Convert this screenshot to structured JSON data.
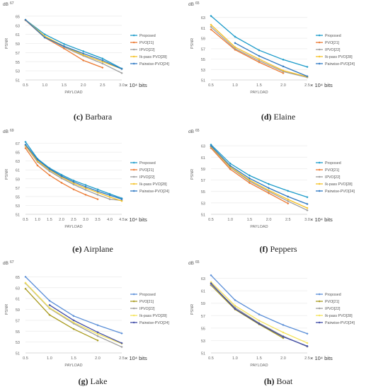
{
  "figure": {
    "colors": {
      "Proposed": "#1a9ac9",
      "PVO[21]": "#ec7a33",
      "IPVO[22]": "#9d9d9d",
      "Ik-pass PVO[28]": "#f5c126",
      "Pairwise-PVO[24]": "#2e78c2",
      "PVO[21]_alt": "#a89a1e",
      "Pairwise-PVO[24]_alt": "#3f4ba6"
    }
  },
  "chart_data": [
    {
      "id": "c",
      "type": "line",
      "caption_letter": "(c)",
      "caption_name": "Barbara",
      "ylabel": "PSNR",
      "xlabel": "PAYLOAD",
      "unit_top": "dB",
      "unit_top_val": "67",
      "x_suffix": "× 10⁴ bits",
      "xticks": [
        "0.5",
        "1.0",
        "1.5",
        "2.0",
        "2.5",
        "3.0"
      ],
      "yticks": [
        "51",
        "53",
        "55",
        "57",
        "59",
        "61",
        "63",
        "65"
      ],
      "xlim": [
        0.5,
        3.0
      ],
      "ylim": [
        51,
        67
      ],
      "series": [
        {
          "name": "Proposed",
          "color": "#1a9ac9",
          "x": [
            0.5,
            1.0,
            1.5,
            2.0,
            2.5,
            3.0
          ],
          "y": [
            64.2,
            61.0,
            58.9,
            57.3,
            55.7,
            53.5
          ]
        },
        {
          "name": "PVO[21]",
          "color": "#ec7a33",
          "x": [
            0.5,
            1.0,
            1.5,
            2.0,
            2.5
          ],
          "y": [
            64.1,
            60.3,
            57.9,
            55.3,
            53.7
          ]
        },
        {
          "name": "IPVO[22]",
          "color": "#9d9d9d",
          "x": [
            0.5,
            1.0,
            1.5,
            2.0,
            2.5,
            3.0
          ],
          "y": [
            64.2,
            60.5,
            58.2,
            56.3,
            54.6,
            52.5
          ]
        },
        {
          "name": "Ik-pass PVO[28]",
          "color": "#f5c126",
          "x": [
            0.5,
            1.0,
            1.5,
            2.0,
            2.5,
            3.0
          ],
          "y": [
            64.2,
            60.6,
            58.4,
            56.5,
            55.0,
            53.4
          ]
        },
        {
          "name": "Pairwise-PVO[24]",
          "color": "#2e78c2",
          "x": [
            0.5,
            1.0,
            1.5,
            2.0,
            2.5,
            3.0
          ],
          "y": [
            64.2,
            60.3,
            58.4,
            56.8,
            55.3,
            53.4
          ]
        }
      ]
    },
    {
      "id": "d",
      "type": "line",
      "caption_letter": "(d)",
      "caption_name": "Elaine",
      "ylabel": "PSNR",
      "xlabel": "PAYLOAD",
      "unit_top": "dB",
      "unit_top_val": "65",
      "x_suffix": "× 10⁴ bits",
      "xticks": [
        "0.5",
        "1.0",
        "1.5",
        "2.0",
        "2.5"
      ],
      "yticks": [
        "51",
        "53",
        "55",
        "57",
        "59",
        "61",
        "63"
      ],
      "xlim": [
        0.5,
        2.5
      ],
      "ylim": [
        51,
        65
      ],
      "series": [
        {
          "name": "Proposed",
          "color": "#1a9ac9",
          "x": [
            0.5,
            1.0,
            1.5,
            2.0,
            2.5
          ],
          "y": [
            63.3,
            59.3,
            56.7,
            54.9,
            53.5
          ]
        },
        {
          "name": "PVO[21]",
          "color": "#ec7a33",
          "x": [
            0.5,
            1.0,
            1.5,
            2.0
          ],
          "y": [
            60.7,
            56.8,
            54.4,
            52.3
          ]
        },
        {
          "name": "IPVO[22]",
          "color": "#9d9d9d",
          "x": [
            0.5,
            1.0,
            1.5,
            2.0,
            2.5
          ],
          "y": [
            61.2,
            57.0,
            54.7,
            52.6,
            51.5
          ]
        },
        {
          "name": "Ik-pass PVO[28]",
          "color": "#f5c126",
          "x": [
            0.5,
            1.0,
            1.5,
            2.0,
            2.5
          ],
          "y": [
            61.6,
            57.3,
            55.0,
            52.8,
            51.6
          ]
        },
        {
          "name": "Pairwise-PVO[24]",
          "color": "#2e78c2",
          "x": [
            1.0,
            1.5,
            2.0,
            2.5
          ],
          "y": [
            58.1,
            55.6,
            53.6,
            51.7
          ]
        }
      ]
    },
    {
      "id": "e",
      "type": "line",
      "caption_letter": "(e)",
      "caption_name": "Airplane",
      "ylabel": "PSNR",
      "xlabel": "PAYLOAD",
      "unit_top": "dB",
      "unit_top_val": "69",
      "x_suffix": "× 10⁴ bits",
      "xticks": [
        "0.5",
        "1.0",
        "1.5",
        "2.0",
        "2.5",
        "3.0",
        "3.5",
        "4.0",
        "4.5"
      ],
      "yticks": [
        "51",
        "53",
        "55",
        "57",
        "59",
        "61",
        "63",
        "65",
        "67"
      ],
      "xlim": [
        0.5,
        4.5
      ],
      "ylim": [
        51,
        69
      ],
      "series": [
        {
          "name": "Proposed",
          "color": "#1a9ac9",
          "x": [
            0.5,
            1.0,
            1.5,
            2.0,
            2.5,
            3.0,
            3.5,
            4.0,
            4.5
          ],
          "y": [
            67.3,
            63.5,
            61.4,
            59.9,
            58.6,
            57.6,
            56.6,
            55.6,
            54.6
          ]
        },
        {
          "name": "PVO[21]",
          "color": "#ec7a33",
          "x": [
            0.5,
            1.0,
            1.5,
            2.0,
            2.5,
            3.0,
            3.5
          ],
          "y": [
            65.9,
            62.0,
            59.8,
            58.1,
            56.6,
            55.4,
            54.4
          ]
        },
        {
          "name": "IPVO[22]",
          "color": "#9d9d9d",
          "x": [
            0.5,
            1.0,
            1.5,
            2.0,
            2.5,
            3.0,
            3.5,
            4.0,
            4.5
          ],
          "y": [
            66.4,
            62.8,
            60.7,
            59.1,
            57.7,
            56.5,
            55.4,
            54.4,
            54.1
          ]
        },
        {
          "name": "Ik-pass PVO[28]",
          "color": "#f5c126",
          "x": [
            0.5,
            1.0,
            1.5,
            2.0,
            2.5,
            3.0,
            3.5,
            4.0,
            4.5
          ],
          "y": [
            66.5,
            63.0,
            61.0,
            59.4,
            58.0,
            56.9,
            55.9,
            54.9,
            54.0
          ]
        },
        {
          "name": "Pairwise-PVO[24]",
          "color": "#2e78c2",
          "x": [
            0.5,
            1.0,
            1.5,
            2.0,
            2.5,
            3.0,
            3.5,
            4.0,
            4.5
          ],
          "y": [
            66.7,
            63.3,
            61.2,
            59.6,
            58.3,
            57.2,
            56.2,
            55.3,
            54.4
          ]
        }
      ]
    },
    {
      "id": "f",
      "type": "line",
      "caption_letter": "(f)",
      "caption_name": "Peppers",
      "ylabel": "PSNR",
      "xlabel": "PAYLOAD",
      "unit_top": "dB",
      "unit_top_val": "65",
      "x_suffix": "× 10⁴ bits",
      "xticks": [
        "0.5",
        "1.0",
        "1.5",
        "2.0",
        "2.5",
        "3.0"
      ],
      "yticks": [
        "51",
        "53",
        "55",
        "57",
        "59",
        "61",
        "63"
      ],
      "xlim": [
        0.5,
        3.0
      ],
      "ylim": [
        51,
        65
      ],
      "series": [
        {
          "name": "Proposed",
          "color": "#1a9ac9",
          "x": [
            0.5,
            1.0,
            1.5,
            2.0,
            2.5,
            3.0
          ],
          "y": [
            63.2,
            59.9,
            57.8,
            56.3,
            55.1,
            54.0
          ]
        },
        {
          "name": "PVO[21]",
          "color": "#ec7a33",
          "x": [
            0.5,
            1.0,
            1.5,
            2.0,
            2.5
          ],
          "y": [
            62.6,
            58.9,
            56.5,
            54.7,
            52.9
          ]
        },
        {
          "name": "IPVO[22]",
          "color": "#9d9d9d",
          "x": [
            0.5,
            1.0,
            1.5,
            2.0,
            2.5,
            3.0
          ],
          "y": [
            62.8,
            59.2,
            56.8,
            55.0,
            53.3,
            51.7
          ]
        },
        {
          "name": "Ik-pass PVO[28]",
          "color": "#f5c126",
          "x": [
            0.5,
            1.0,
            1.5,
            2.0,
            2.5,
            3.0
          ],
          "y": [
            62.9,
            59.3,
            57.0,
            55.2,
            53.6,
            52.1
          ]
        },
        {
          "name": "Pairwise-PVO[24]",
          "color": "#2e78c2",
          "x": [
            0.5,
            1.0,
            1.5,
            2.0,
            2.5,
            3.0
          ],
          "y": [
            63.0,
            59.5,
            57.3,
            55.6,
            54.1,
            52.8
          ]
        }
      ]
    },
    {
      "id": "g",
      "type": "line",
      "caption_letter": "(g)",
      "caption_name": "Lake",
      "ylabel": "PSNR",
      "xlabel": "PAYLOAD",
      "unit_top": "dB",
      "unit_top_val": "67",
      "x_suffix": "× 10⁴ bits",
      "xticks": [
        "0.5",
        "1.0",
        "1.5",
        "2.0",
        "2.5"
      ],
      "yticks": [
        "51",
        "53",
        "55",
        "57",
        "59",
        "61",
        "63",
        "65"
      ],
      "xlim": [
        0.5,
        2.5
      ],
      "ylim": [
        51,
        67
      ],
      "series": [
        {
          "name": "Proposed",
          "color": "#5b8fd8",
          "x": [
            0.5,
            1.0,
            1.5,
            2.0,
            2.5
          ],
          "y": [
            65.0,
            60.6,
            57.8,
            56.1,
            54.6
          ]
        },
        {
          "name": "PVO[21]",
          "color": "#a89a1e",
          "x": [
            0.5,
            1.0,
            1.5,
            2.0
          ],
          "y": [
            62.8,
            58.0,
            55.4,
            53.3
          ]
        },
        {
          "name": "IPVO[22]",
          "color": "#9d9d9d",
          "x": [
            0.5,
            1.0,
            1.5,
            2.0,
            2.5
          ],
          "y": [
            63.8,
            59.2,
            56.4,
            54.1,
            52.1
          ]
        },
        {
          "name": "Ik-pass PVO[28]",
          "color": "#f5e35a",
          "x": [
            0.5,
            1.0,
            1.5,
            2.0,
            2.5
          ],
          "y": [
            63.9,
            59.3,
            56.6,
            54.5,
            52.7
          ]
        },
        {
          "name": "Pairwise-PVO[24]",
          "color": "#3f4ba6",
          "x": [
            1.0,
            1.5,
            2.0,
            2.5
          ],
          "y": [
            59.8,
            57.0,
            54.8,
            52.8
          ]
        }
      ]
    },
    {
      "id": "h",
      "type": "line",
      "caption_letter": "(h)",
      "caption_name": "Boat",
      "ylabel": "PSNR",
      "xlabel": "PAYLOAD",
      "unit_top": "dB",
      "unit_top_val": "65",
      "x_suffix": "× 10⁴ bits",
      "xticks": [
        "0.5",
        "1.0",
        "1.5",
        "2.0",
        "2.5"
      ],
      "yticks": [
        "51",
        "53",
        "55",
        "57",
        "59",
        "61",
        "63"
      ],
      "xlim": [
        0.5,
        2.5
      ],
      "ylim": [
        51,
        65
      ],
      "series": [
        {
          "name": "Proposed",
          "color": "#5b8fd8",
          "x": [
            0.5,
            1.0,
            1.5,
            2.0,
            2.5
          ],
          "y": [
            63.5,
            59.5,
            57.2,
            55.5,
            54.1
          ]
        },
        {
          "name": "PVO[21]",
          "color": "#a89a1e",
          "x": [
            0.5,
            1.0,
            1.5,
            2.0
          ],
          "y": [
            61.9,
            58.0,
            55.6,
            53.4
          ]
        },
        {
          "name": "IPVO[22]",
          "color": "#9d9d9d",
          "x": [
            0.5,
            1.0,
            1.5,
            2.0,
            2.5
          ],
          "y": [
            62.0,
            58.3,
            55.8,
            53.7,
            52.0
          ]
        },
        {
          "name": "Ik-pass PVO[28]",
          "color": "#f5e35a",
          "x": [
            0.5,
            1.0,
            1.5,
            2.0,
            2.5
          ],
          "y": [
            62.4,
            58.6,
            56.2,
            54.3,
            52.6
          ]
        },
        {
          "name": "Pairwise-PVO[24]",
          "color": "#3f4ba6",
          "x": [
            0.5,
            1.0,
            1.5,
            2.0,
            2.5
          ],
          "y": [
            62.2,
            58.1,
            55.7,
            53.6,
            52.1
          ]
        }
      ]
    }
  ]
}
